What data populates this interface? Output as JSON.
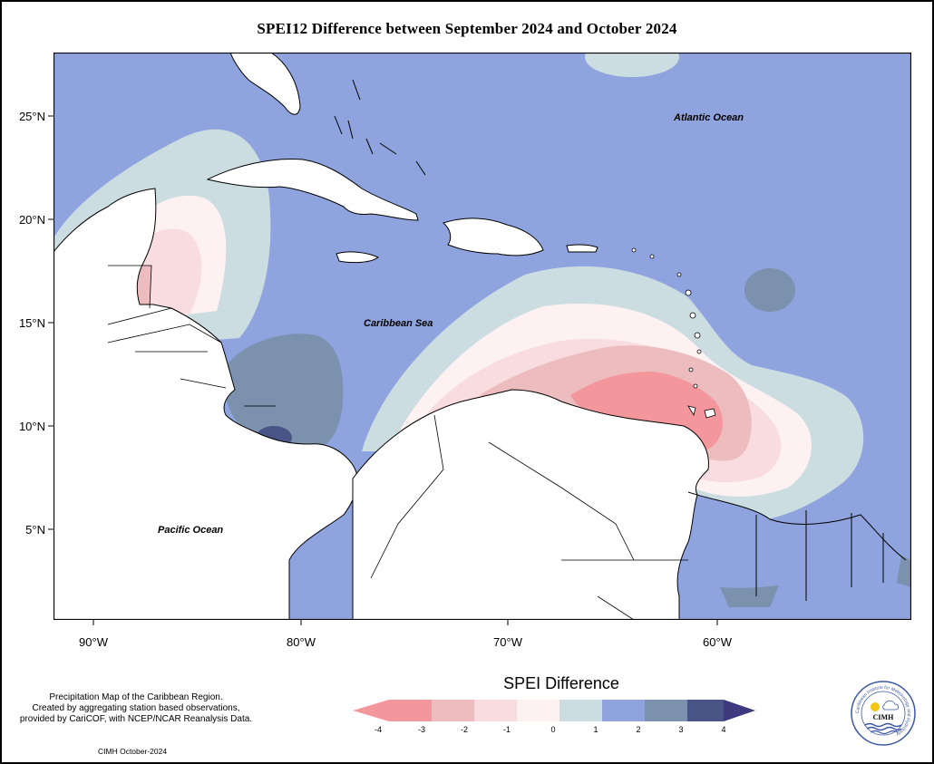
{
  "title": "SPEI12 Difference between September 2024 and October 2024",
  "lat_labels": [
    "25°N",
    "20°N",
    "15°N",
    "10°N",
    "5°N"
  ],
  "lon_labels": [
    "90°W",
    "80°W",
    "70°W",
    "60°W"
  ],
  "oceans": {
    "atlantic": "Atlantic Ocean",
    "caribbean": "Caribbean Sea",
    "pacific": "Pacific Ocean"
  },
  "info_lines": [
    "Precipitation Map of the Caribbean Region.",
    "Created by aggregating station based observations,",
    "provided by CariCOF, with NCEP/NCAR Reanalysis Data."
  ],
  "credit": "CIMH October-2024",
  "legend": {
    "title": "SPEI Difference",
    "ticks": [
      "-4",
      "-3",
      "-2",
      "-1",
      "0",
      "1",
      "2",
      "3",
      "4"
    ],
    "colors": {
      "lt_-3": "#f4979c",
      "-3_-2": "#ecbcbe",
      "-2_-1": "#f8dcdf",
      "-1_0": "#fdf1f2",
      "0_1": "#ccdde2",
      "1_2": "#8fa4de",
      "2_3": "#7b91ad",
      "gt_3": "#4a5587",
      "land": "#ffffff",
      "coast": "#000000"
    }
  },
  "logo": {
    "text": "CIMH",
    "ring_text": "Caribbean Institute for Meteorology and Hydrology"
  }
}
